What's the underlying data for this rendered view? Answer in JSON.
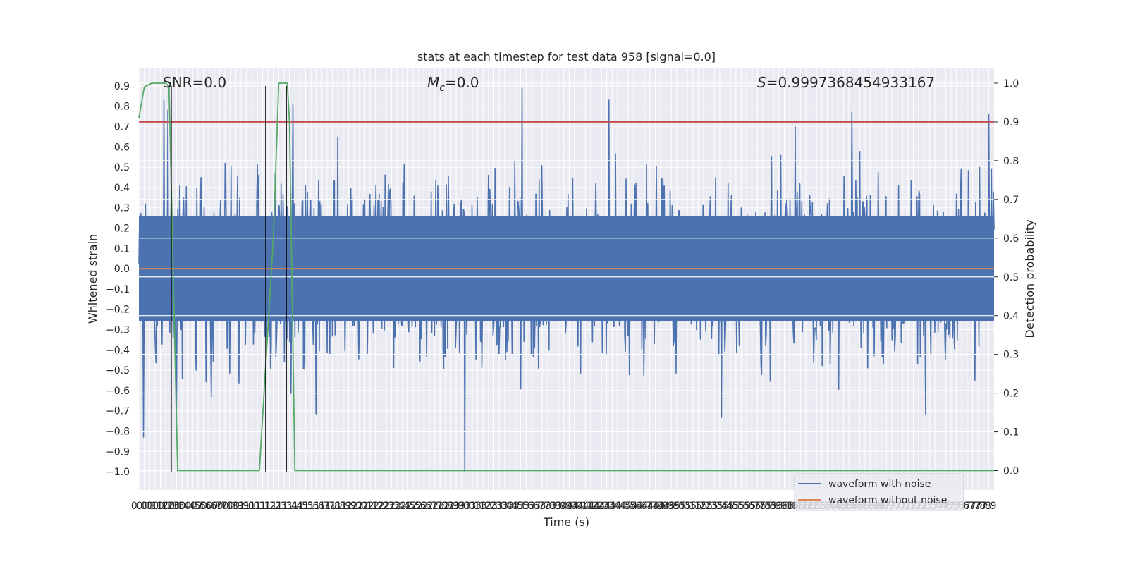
{
  "chart_data": {
    "type": "line",
    "title": "stats at each timestep for test data 958 [signal=0.0]",
    "xlabel": "Time (s)",
    "ylabel": "Whitened strain",
    "y2label": "Detection probability",
    "xlim": [
      0.0,
      7.95
    ],
    "ylim": [
      -1.09,
      0.99
    ],
    "y2lim": [
      -0.05,
      1.04
    ],
    "x_ticks": [
      0.0,
      0.05,
      0.1,
      0.15,
      0.2,
      0.25,
      0.3,
      0.35,
      0.4,
      0.45,
      0.5,
      0.55,
      0.6,
      0.65,
      0.7,
      0.75,
      0.8,
      0.85,
      0.9,
      0.95,
      1.0,
      1.05,
      1.1,
      1.15,
      1.2,
      1.25,
      1.3,
      1.35,
      1.4,
      1.45,
      1.5,
      1.55,
      1.6,
      1.65,
      1.7,
      1.75,
      1.8,
      1.85,
      1.9,
      1.95,
      2.0,
      2.05,
      2.1,
      2.15,
      2.2,
      2.25,
      2.3,
      2.35,
      2.4,
      2.45,
      2.5,
      2.55,
      2.6,
      2.65,
      2.7,
      2.75,
      2.8,
      2.85,
      2.9,
      2.95,
      3.0,
      3.05,
      3.1,
      3.15,
      3.2,
      3.25,
      3.3,
      3.35,
      3.4,
      3.45,
      3.5,
      3.55,
      3.6,
      3.65,
      3.7,
      3.75,
      3.8,
      3.85,
      3.9,
      3.95,
      4.0,
      4.05,
      4.1,
      4.15,
      4.2,
      4.25,
      4.3,
      4.35,
      4.4,
      4.45,
      4.5,
      4.55,
      4.6,
      4.65,
      4.7,
      4.75,
      4.8,
      4.85,
      4.9,
      4.95,
      5.0,
      5.05,
      5.1,
      5.15,
      5.2,
      5.25,
      5.3,
      5.35,
      5.4,
      5.45,
      5.5,
      5.55,
      5.6,
      5.65,
      5.7,
      5.75,
      5.8,
      5.85,
      5.9,
      5.95,
      6.0,
      6.05,
      6.1,
      6.15,
      6.2,
      6.25,
      6.3,
      6.35,
      6.4,
      6.45,
      6.5,
      6.55,
      6.6,
      6.65,
      6.7,
      6.75,
      6.8,
      6.85,
      6.9,
      6.95,
      7.0,
      7.05,
      7.1,
      7.15,
      7.2,
      7.25,
      7.3,
      7.35,
      7.4,
      7.45,
      7.5,
      7.55,
      7.6,
      7.65,
      7.7,
      7.75,
      7.8,
      7.85,
      7.9
    ],
    "x_tick_labels": [
      "0.0",
      "0.0",
      "0.1",
      "0.1",
      "0.2",
      "0.2",
      "0.3",
      "0.3",
      "0.4",
      "0.4",
      "0.5",
      "0.5",
      "0.6",
      "0.6",
      "0.7",
      "0.7",
      "0.8",
      "0.8",
      "0.9",
      "0.9",
      "1.0",
      "1.0",
      "1.1",
      "1.1",
      "1.2",
      "1.2",
      "1.3",
      "1.3",
      "1.4",
      "1.4",
      "1.5",
      "1.5",
      "1.6",
      "1.6",
      "1.7",
      "1.7",
      "1.8",
      "1.8",
      "1.9",
      "1.9",
      "2.0",
      "2.0",
      "2.1",
      "2.1",
      "2.2",
      "2.2",
      "2.3",
      "2.3",
      "2.4",
      "2.4",
      "2.5",
      "2.5",
      "2.6",
      "2.6",
      "2.7",
      "2.7",
      "2.8",
      "2.8",
      "2.9",
      "2.9",
      "3.0",
      "3.0",
      "3.1",
      "3.1",
      "3.2",
      "3.2",
      "3.3",
      "3.3",
      "3.4",
      "3.4",
      "3.5",
      "3.5",
      "3.6",
      "3.6",
      "3.7",
      "3.7",
      "3.8",
      "3.8",
      "3.9",
      "3.9",
      "4.0",
      "4.0",
      "4.1",
      "4.1",
      "4.2",
      "4.2",
      "4.3",
      "4.3",
      "4.4",
      "4.4",
      "4.5",
      "4.5",
      "4.6",
      "4.6",
      "4.7",
      "4.7",
      "4.8",
      "4.8",
      "4.9",
      "4.9",
      "5.0",
      "5.0",
      "5.1",
      "5.1",
      "5.2",
      "5.2",
      "5.3",
      "5.3",
      "5.4",
      "5.4",
      "5.5",
      "5.5",
      "5.6",
      "5.6",
      "5.7",
      "5.7",
      "5.8",
      "5.8",
      "5.9",
      "5.9",
      "6.0",
      "6.0",
      "6.1",
      "6.1",
      "6.2",
      "6.2",
      "6.3",
      "6.3",
      "6.4",
      "6.4",
      "6.5",
      "6.5",
      "6.6",
      "6.6",
      "6.7",
      "6.7",
      "6.8",
      "6.8",
      "6.9",
      "6.9",
      "7.0",
      "7.0",
      "7.1",
      "7.1",
      "7.2",
      "7.2",
      "7.3",
      "7.3",
      "7.4",
      "7.4",
      "7.5",
      "7.5",
      "7.6",
      "7.6",
      "7.7",
      "7.7",
      "7.8",
      "7.8",
      "7.9"
    ],
    "y_ticks": [
      0.9,
      0.8,
      0.7,
      0.6,
      0.5,
      0.4,
      0.3,
      0.2,
      0.1,
      0.0,
      -0.1,
      -0.2,
      -0.3,
      -0.4,
      -0.5,
      -0.6,
      -0.7,
      -0.8,
      -0.9,
      -1.0
    ],
    "y_tick_labels": [
      "0.9",
      "0.8",
      "0.7",
      "0.6",
      "0.5",
      "0.4",
      "0.3",
      "0.2",
      "0.1",
      "0.0",
      "−0.1",
      "−0.2",
      "−0.3",
      "−0.4",
      "−0.5",
      "−0.6",
      "−0.7",
      "−0.8",
      "−0.9",
      "−1.0"
    ],
    "y2_ticks": [
      1.0,
      0.9,
      0.8,
      0.7,
      0.6,
      0.5,
      0.4,
      0.3,
      0.2,
      0.1,
      0.0
    ],
    "y2_tick_labels": [
      "1.0",
      "0.9",
      "0.8",
      "0.7",
      "0.6",
      "0.5",
      "0.4",
      "0.3",
      "0.2",
      "0.1",
      "0.0"
    ],
    "grid": true,
    "legend_placement": "lower-right",
    "annotations": [
      "SNR=0.0",
      "=0.0",
      "=0.9997368454933167"
    ],
    "annotation_symbols": [
      "M",
      "c",
      "S"
    ],
    "series": [
      {
        "name": "waveform with noise",
        "color": "#4c72b0",
        "axis": "left",
        "description_of_shape": "dense whitened noise, samples spanning about -1.0 to 0.9",
        "spikes": [
          {
            "x": 0.04,
            "y": -0.83
          },
          {
            "x": 0.23,
            "y": 0.83
          },
          {
            "x": 0.27,
            "y": 0.78
          },
          {
            "x": 1.43,
            "y": 0.81
          },
          {
            "x": 3.03,
            "y": -1.0
          },
          {
            "x": 3.56,
            "y": 0.89
          },
          {
            "x": 4.37,
            "y": 0.83
          },
          {
            "x": 6.63,
            "y": 0.77
          },
          {
            "x": 7.9,
            "y": 0.76
          }
        ]
      },
      {
        "name": "waveform without noise",
        "color": "#dd8452",
        "axis": "left",
        "x": [
          0.0,
          7.95
        ],
        "y": [
          0.0,
          0.0
        ]
      },
      {
        "color": "#55a868",
        "axis": "right",
        "x": [
          0.0,
          0.05,
          0.12,
          0.18,
          0.25,
          0.28,
          0.32,
          0.36,
          0.42,
          1.1,
          1.12,
          1.25,
          1.3,
          1.38,
          1.4,
          1.45,
          7.95
        ],
        "y": [
          0.91,
          0.99,
          1.0,
          1.0,
          1.0,
          0.99,
          0.5,
          0.0,
          0.0,
          0.0,
          0.0,
          0.6,
          1.0,
          1.0,
          0.9,
          0.0,
          0.0
        ]
      }
    ],
    "threshold": {
      "axis": "right",
      "value": 0.9,
      "color": "#c44e52"
    },
    "vertical_markers": {
      "color": "#000000",
      "lines": [
        {
          "x": 0.3,
          "y_from": -1.0,
          "y_to": 0.9
        },
        {
          "x": 1.18,
          "y_from": -1.0,
          "y_to": 0.9
        },
        {
          "x": 1.37,
          "y_from": -1.0,
          "y_to": 0.9
        }
      ]
    }
  }
}
